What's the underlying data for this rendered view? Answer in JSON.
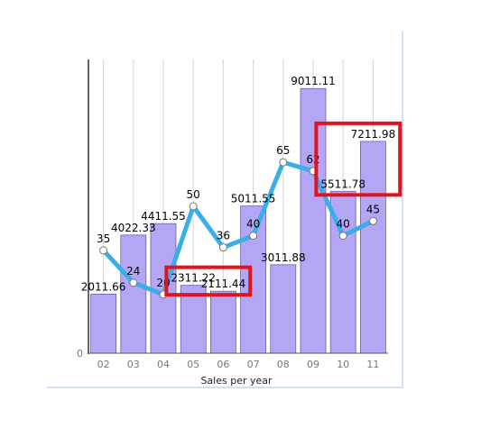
{
  "chart_data": {
    "type": "bar",
    "categories": [
      "02",
      "03",
      "04",
      "05",
      "06",
      "07",
      "08",
      "09",
      "10",
      "11"
    ],
    "series": [
      {
        "kind": "bar",
        "values": [
          2011.66,
          4022.33,
          4411.55,
          2311.22,
          2111.44,
          5011.55,
          3011.88,
          9011.11,
          5511.78,
          7211.98
        ],
        "labels": [
          "2011.66",
          "4022.33",
          "4411.55",
          "2311.22",
          "2111.44",
          "5011.55",
          "3011.88",
          "9011.11",
          "5511.78",
          "7211.98"
        ],
        "color": "#b5a6f5"
      },
      {
        "kind": "line",
        "values": [
          35,
          24,
          20,
          50,
          36,
          40,
          65,
          62,
          40,
          45
        ],
        "labels": [
          "35",
          "24",
          "20",
          "50",
          "36",
          "40",
          "65",
          "62",
          "40",
          "45"
        ],
        "color": "#3aaee8"
      }
    ],
    "xlabel": "Sales per year",
    "ylabel": "",
    "y_tick_labels": [
      "0"
    ],
    "ylim_bar": [
      0,
      10000
    ],
    "ylim_line": [
      0,
      100
    ],
    "grid": "vertical",
    "highlighted_labels": [
      "2311.22",
      "2111.44",
      "5511.78",
      "7211.98"
    ],
    "highlight_color": "#e0141e"
  }
}
